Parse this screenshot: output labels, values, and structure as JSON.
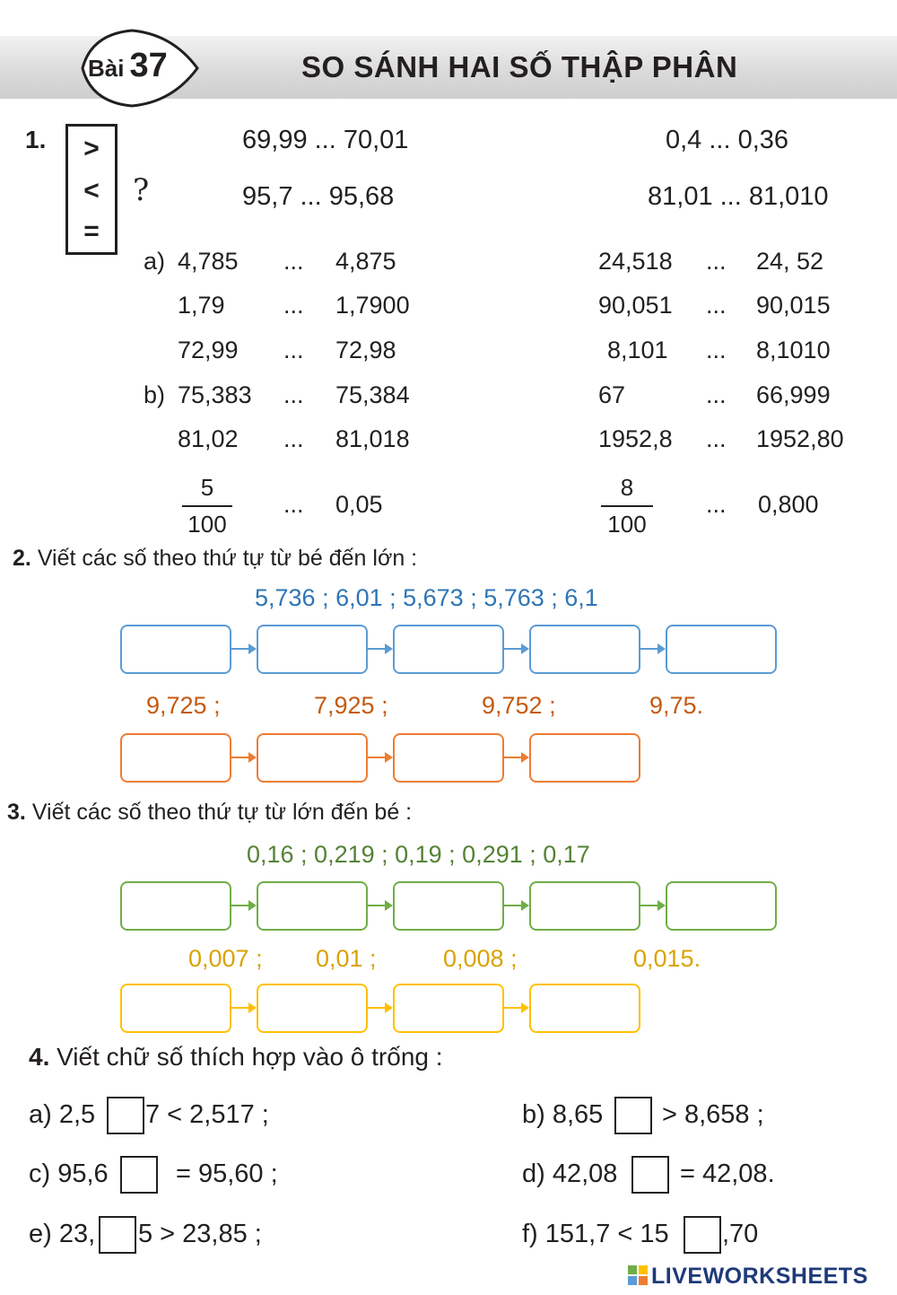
{
  "header": {
    "lesson_word": "Bài",
    "lesson_number": "37",
    "title": "SO SÁNH HAI SỐ THẬP PHÂN"
  },
  "ex1": {
    "number": "1.",
    "signs": [
      ">",
      "<",
      "="
    ],
    "question_mark": "?",
    "top_rows": [
      {
        "left": "69,99 ...  70,01",
        "right": "0,4   ...  0,36"
      },
      {
        "left": "95,7  ...  95,68",
        "right": "81,01 ...  81,010"
      }
    ],
    "part_a_label": "a)",
    "part_b_label": "b)",
    "rows": [
      {
        "l1": "4,785",
        "d1": "...",
        "l2": "4,875",
        "r1": "24,518",
        "d2": "...",
        "r2": "24, 52"
      },
      {
        "l1": "1,79",
        "d1": "...",
        "l2": "1,7900",
        "r1": "90,051",
        "d2": "...",
        "r2": "90,015"
      },
      {
        "l1": "72,99",
        "d1": "...",
        "l2": "72,98",
        "r1": "8,101",
        "d2": "...",
        "r2": "8,1010"
      },
      {
        "l1": "75,383",
        "d1": "...",
        "l2": "75,384",
        "r1": "67",
        "d2": "...",
        "r2": "66,999"
      },
      {
        "l1": "81,02",
        "d1": "...",
        "l2": "81,018",
        "r1": "1952,8",
        "d2": "...",
        "r2": "1952,80"
      }
    ],
    "fraction_row": {
      "left_num": "5",
      "left_den": "100",
      "d1": "...",
      "left_val": "0,05",
      "right_num": "8",
      "right_den": "100",
      "d2": "...",
      "right_val": "0,800"
    }
  },
  "ex2": {
    "number": "2.",
    "instruction": "Viết các số theo thứ tự từ bé đến lớn :",
    "set1": "5,736 ; 6,01 ; 5,673 ; 5,763 ; 6,1",
    "set2": [
      "9,725 ;",
      "7,925 ;",
      "9,752 ;",
      "9,75."
    ]
  },
  "ex3": {
    "number": "3.",
    "instruction": "Viết các số  theo thứ tự từ lớn đến bé :",
    "set1": "0,16 ; 0,219 ; 0,19 ; 0,291 ; 0,17",
    "set2": [
      "0,007 ;",
      "0,01 ;",
      "0,008 ;",
      "0,015."
    ]
  },
  "ex4": {
    "number": "4.",
    "instruction": "Viết chữ số thích hợp vào ô trống :",
    "a": {
      "pre": "a) 2,5",
      "post": "7 < 2,517 ;"
    },
    "b": {
      "pre": "b) 8,65",
      "post": "> 8,658 ;"
    },
    "c": {
      "pre": "c) 95,6",
      "post": "= 95,60 ;"
    },
    "d": {
      "pre": "d) 42,08",
      "post": "= 42,08."
    },
    "e": {
      "pre": "e) 23,",
      "post": "5   >  23,85 ;"
    },
    "f": {
      "pre": "f) 151,7 < 15",
      "post": ",70"
    }
  },
  "colors": {
    "blue": "#5b9bd5",
    "orange": "#ed7d31",
    "green": "#70ad47",
    "yellow": "#ffc000"
  },
  "footer": {
    "brand": "LIVEWORKSHEETS",
    "icon": "liveworksheets-logo-icon"
  }
}
